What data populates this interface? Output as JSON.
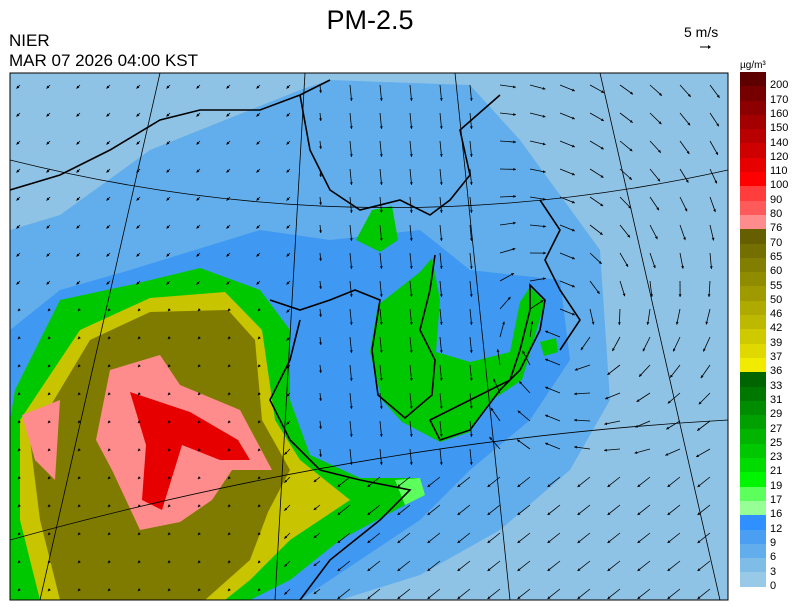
{
  "header": {
    "title": "PM-2.5",
    "organization": "NIER",
    "timestamp": "MAR 07 2026 04:00 KST",
    "wind_reference": "5 m/s",
    "unit": "µg/m³"
  },
  "legend": {
    "labels": [
      "200",
      "170",
      "160",
      "150",
      "140",
      "120",
      "110",
      "100",
      "90",
      "80",
      "76",
      "70",
      "65",
      "60",
      "55",
      "50",
      "46",
      "42",
      "39",
      "37",
      "36",
      "33",
      "31",
      "29",
      "27",
      "25",
      "23",
      "21",
      "19",
      "17",
      "16",
      "12",
      "9",
      "6",
      "3",
      "0"
    ],
    "colors": [
      "#5e0000",
      "#760000",
      "#8c0000",
      "#a30000",
      "#b80000",
      "#cf0000",
      "#e60000",
      "#ff0000",
      "#ff3d3d",
      "#ff5a5a",
      "#ff8c8c",
      "#665f00",
      "#736f00",
      "#817e00",
      "#8f8c00",
      "#9e9a00",
      "#aeaa00",
      "#bdb900",
      "#cfca00",
      "#dfd900",
      "#f0eb00",
      "#006400",
      "#007800",
      "#008c00",
      "#00a000",
      "#00b400",
      "#00c800",
      "#00dc00",
      "#00f500",
      "#5cff5c",
      "#96ff96",
      "#3190ff",
      "#4a9ff2",
      "#62aeec",
      "#80bde6",
      "#98c9e6"
    ]
  },
  "map": {
    "background_color": "#8fc3e6",
    "region_colors": {
      "low_blue": "#62aeec",
      "mid_blue": "#3f98f2",
      "green": "#00c800",
      "light_green": "#5cff5c",
      "yellow": "#c8c400",
      "olive": "#7f7b00",
      "pink": "#ff8c8c",
      "red": "#e60000"
    }
  }
}
